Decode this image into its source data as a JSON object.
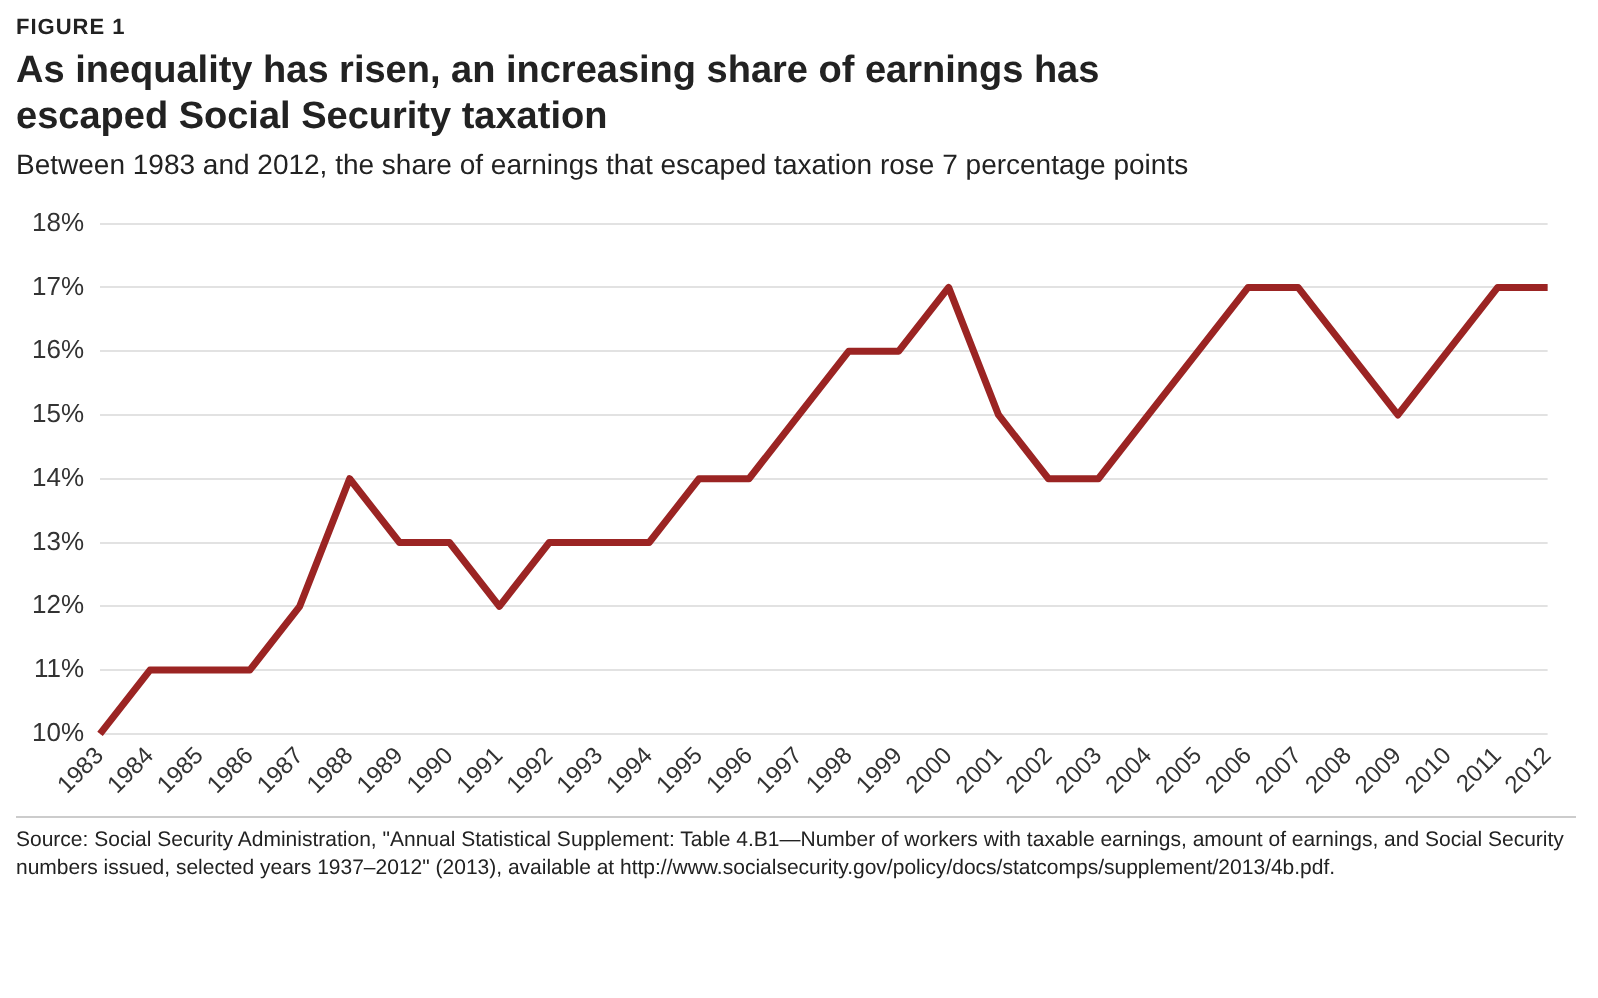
{
  "chart_data": {
    "type": "line",
    "title": "As inequality has risen, an increasing share of earnings has escaped Social Security taxation",
    "subtitle": "Between 1983 and 2012, the share of earnings that escaped taxation rose 7 percentage points",
    "annotations": [
      "FIGURE 1",
      "Source: Social Security Administration, \"Annual Statistical Supplement: Table 4.B1—Number of workers with taxable earnings, amount of earnings, and Social Security numbers issued, selected years 1937–2012\" (2013), available at http://www.socialsecurity.gov/policy/docs/statcomps/supplement/2013/4b.pdf."
    ],
    "categories": [
      "1983",
      "1984",
      "1985",
      "1986",
      "1987",
      "1988",
      "1989",
      "1990",
      "1991",
      "1992",
      "1993",
      "1994",
      "1995",
      "1996",
      "1997",
      "1998",
      "1999",
      "2000",
      "2001",
      "2002",
      "2003",
      "2004",
      "2005",
      "2006",
      "2007",
      "2008",
      "2009",
      "2010",
      "2011",
      "2012"
    ],
    "series": [
      {
        "color": "#9b2423",
        "values": [
          10,
          11,
          11,
          11,
          12,
          14,
          13,
          13,
          12,
          13,
          13,
          13,
          14,
          14,
          15,
          16,
          16,
          17,
          15,
          14,
          14,
          15,
          16,
          17,
          17,
          16,
          15,
          16,
          17,
          17
        ]
      }
    ],
    "ylim": [
      10,
      18
    ],
    "yticks": [
      {
        "value": 10,
        "label": "10%"
      },
      {
        "value": 11,
        "label": "11%"
      },
      {
        "value": 12,
        "label": "12%"
      },
      {
        "value": 13,
        "label": "13%"
      },
      {
        "value": 14,
        "label": "14%"
      },
      {
        "value": 15,
        "label": "15%"
      },
      {
        "value": 16,
        "label": "16%"
      },
      {
        "value": 17,
        "label": "17%"
      },
      {
        "value": 18,
        "label": "18%"
      }
    ],
    "grid": "y",
    "legend": false,
    "marker": "none",
    "line_style": "solid"
  }
}
